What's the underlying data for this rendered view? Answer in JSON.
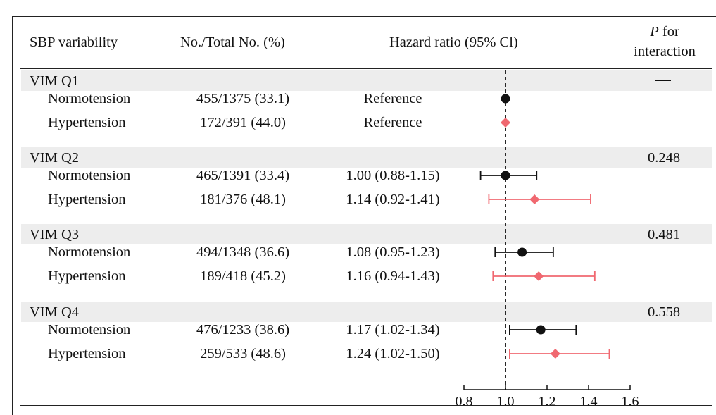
{
  "header": {
    "col1": "SBP variability",
    "col2": "No./Total No. (%)",
    "col3": "Hazard ratio (95% Cl)",
    "col4_italic": "P",
    "col4_rest": " for",
    "col4_line2": "interaction"
  },
  "groups": [
    {
      "label": "VIM Q1",
      "p": "—",
      "rows": [
        {
          "label": "Normotension",
          "count": "455/1375 (33.1)",
          "hr_text": "Reference"
        },
        {
          "label": "Hypertension",
          "count": "172/391 (44.0)",
          "hr_text": "Reference"
        }
      ]
    },
    {
      "label": "VIM Q2",
      "p": "0.248",
      "rows": [
        {
          "label": "Normotension",
          "count": "465/1391 (33.4)",
          "hr_text": "1.00 (0.88-1.15)"
        },
        {
          "label": "Hypertension",
          "count": "181/376 (48.1)",
          "hr_text": "1.14 (0.92-1.41)"
        }
      ]
    },
    {
      "label": "VIM Q3",
      "p": "0.481",
      "rows": [
        {
          "label": "Normotension",
          "count": "494/1348 (36.6)",
          "hr_text": "1.08 (0.95-1.23)"
        },
        {
          "label": "Hypertension",
          "count": "189/418 (45.2)",
          "hr_text": "1.16 (0.94-1.43)"
        }
      ]
    },
    {
      "label": "VIM Q4",
      "p": "0.558",
      "rows": [
        {
          "label": "Normotension",
          "count": "476/1233 (38.6)",
          "hr_text": "1.17 (1.02-1.34)"
        },
        {
          "label": "Hypertension",
          "count": "259/533 (48.6)",
          "hr_text": "1.24 (1.02-1.50)"
        }
      ]
    }
  ],
  "colors": {
    "normotension": "#111111",
    "hypertension": "#f06870",
    "band": "#ededed"
  },
  "chart_data": {
    "type": "forest",
    "x_axis": {
      "range": [
        0.8,
        1.6
      ],
      "ticks": [
        0.8,
        1.0,
        1.2,
        1.4,
        1.6
      ],
      "tick_labels": [
        "0.8",
        "1.0",
        "1.2",
        "1.4",
        "1.6"
      ],
      "reference_line": 1.0,
      "reference_style": "dashed"
    },
    "series": [
      {
        "marker": "circle",
        "points": [
          {
            "group": "VIM Q1",
            "hr": 1.0,
            "lo": null,
            "hi": null
          },
          {
            "group": "VIM Q2",
            "hr": 1.0,
            "lo": 0.88,
            "hi": 1.15
          },
          {
            "group": "VIM Q3",
            "hr": 1.08,
            "lo": 0.95,
            "hi": 1.23
          },
          {
            "group": "VIM Q4",
            "hr": 1.17,
            "lo": 1.02,
            "hi": 1.34
          }
        ]
      },
      {
        "marker": "diamond",
        "points": [
          {
            "group": "VIM Q1",
            "hr": 1.0,
            "lo": null,
            "hi": null
          },
          {
            "group": "VIM Q2",
            "hr": 1.14,
            "lo": 0.92,
            "hi": 1.41
          },
          {
            "group": "VIM Q3",
            "hr": 1.16,
            "lo": 0.94,
            "hi": 1.43
          },
          {
            "group": "VIM Q4",
            "hr": 1.24,
            "lo": 1.02,
            "hi": 1.5
          }
        ]
      }
    ]
  }
}
